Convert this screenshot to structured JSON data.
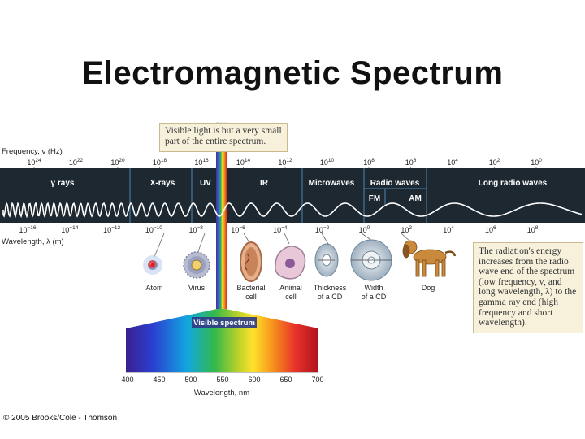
{
  "title": "Electromagnetic Spectrum",
  "credit": "© 2005 Brooks/Cole - Thomson",
  "axes": {
    "frequency_label": "Frequency, ν (Hz)",
    "wavelength_label": "Wavelength, λ (m)",
    "frequency_ticks": [
      "10^24",
      "10^22",
      "10^20",
      "10^18",
      "10^16",
      "10^14",
      "10^12",
      "10^10",
      "10^8",
      "10^6",
      "10^4",
      "10^2",
      "10^0"
    ],
    "wavelength_ticks": [
      "10^−16",
      "10^−14",
      "10^−12",
      "10^−10",
      "10^−8",
      "10^−6",
      "10^−4",
      "10^−2",
      "10^0",
      "10^2",
      "10^4",
      "10^6",
      "10^8"
    ]
  },
  "regions": [
    "γ rays",
    "X-rays",
    "UV",
    "IR",
    "Microwaves",
    "Radio waves",
    "Long radio waves"
  ],
  "subregions": [
    "FM",
    "AM"
  ],
  "objects": [
    "Atom",
    "Virus",
    "Bacterial cell",
    "Animal cell",
    "Thickness of a CD",
    "Width of a CD",
    "Dog"
  ],
  "callouts": {
    "top": "Visible light is but a very small part of the entire spectrum.",
    "right": "The radiation's energy increases from the radio wave end of the spectrum (low frequency, ν, and long wavelength, λ) to the gamma ray end (high frequency and short wavelength)."
  },
  "visible": {
    "label": "Visible spectrum",
    "axis_label": "Wavelength, nm",
    "ticks": [
      "400",
      "450",
      "500",
      "550",
      "600",
      "650",
      "700"
    ]
  },
  "colors": {
    "band": "#1d2831",
    "band_text": "#ffffff",
    "callout_bg": "#f7f1dc"
  }
}
